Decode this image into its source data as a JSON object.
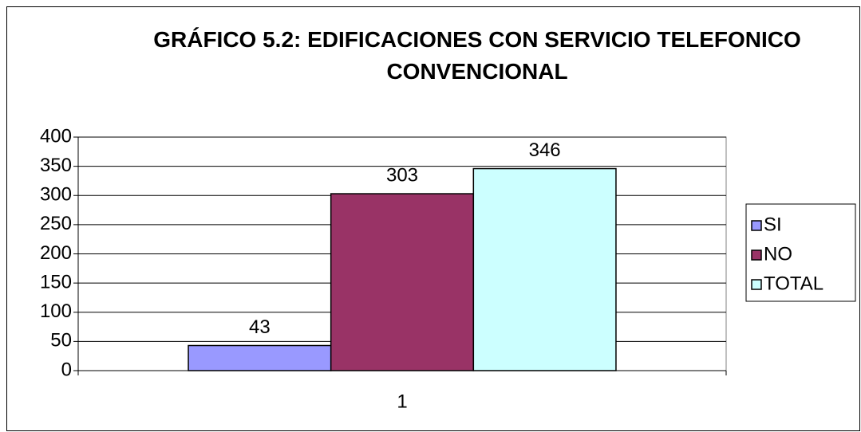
{
  "chart_data": {
    "type": "bar",
    "title": "GRÁFICO 5.2: EDIFICACIONES CON SERVICIO TELEFONICO CONVENCIONAL",
    "categories": [
      "1"
    ],
    "series": [
      {
        "name": "SI",
        "color": "#9999ff",
        "values": [
          43
        ]
      },
      {
        "name": "NO",
        "color": "#993366",
        "values": [
          303
        ]
      },
      {
        "name": "TOTAL",
        "color": "#ccffff",
        "values": [
          346
        ]
      }
    ],
    "ylim": [
      0,
      400
    ],
    "yticks": [
      0,
      50,
      100,
      150,
      200,
      250,
      300,
      350,
      400
    ],
    "grid": true,
    "legend": "right"
  }
}
